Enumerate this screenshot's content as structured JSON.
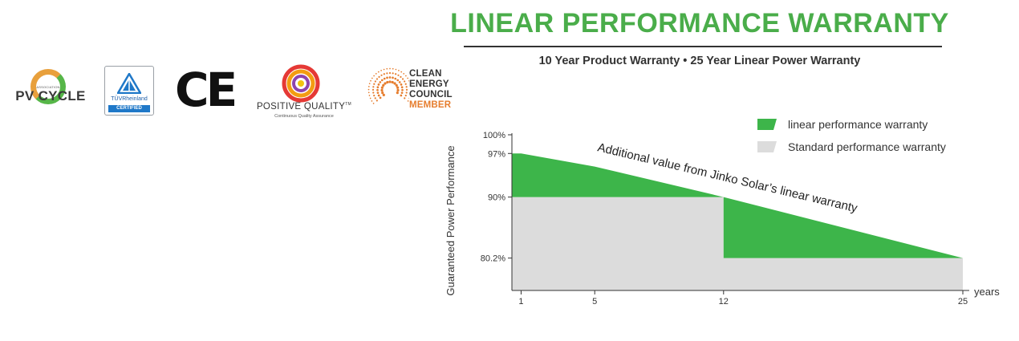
{
  "header": {
    "title": "LINEAR PERFORMANCE WARRANTY",
    "subtitle": "10 Year Product Warranty  • 25 Year Linear Power Warranty"
  },
  "logos": {
    "pv_cycle": {
      "small_text": "ASSOCIATION",
      "name": "PV CYCLE"
    },
    "tuv": {
      "brand": "TÜVRheinland",
      "badge": "CERTIFIED"
    },
    "ce": {
      "mark": "CE"
    },
    "positive_quality": {
      "title": "POSITIVE QUALITY",
      "tm": "TM",
      "subtitle": "Continuous Quality Assurance"
    },
    "clean_energy_council": {
      "line1": "CLEAN",
      "line2": "ENERGY",
      "line3": "COUNCIL",
      "line4": "MEMBER"
    }
  },
  "chart_data": {
    "type": "area",
    "title": "",
    "xlabel": "years",
    "ylabel": "Guaranteed Power Performance",
    "x_ticks": [
      {
        "value": 1,
        "label": "1"
      },
      {
        "value": 5,
        "label": "5"
      },
      {
        "value": 12,
        "label": "12"
      },
      {
        "value": 25,
        "label": "25"
      }
    ],
    "y_ticks": [
      {
        "value": 100,
        "label": "100%"
      },
      {
        "value": 97,
        "label": "97%"
      },
      {
        "value": 90,
        "label": "90%"
      },
      {
        "value": 80.2,
        "label": "80.2%"
      }
    ],
    "xlim": [
      0.5,
      25
    ],
    "ylim": [
      75,
      100
    ],
    "series": [
      {
        "name": "linear performance warranty",
        "color": "#3db54a",
        "x": [
          1,
          5,
          12,
          25
        ],
        "y": [
          97,
          94.9,
          90,
          80.2
        ]
      },
      {
        "name": "Standard performance warranty",
        "color": "#dcdcdc",
        "x": [
          0.5,
          12,
          12,
          25
        ],
        "y": [
          90,
          90,
          80.2,
          80.2
        ]
      }
    ],
    "annotation": "Additional value from Jinko Solar’s linear warranty",
    "legend": "top-right",
    "grid": false
  }
}
